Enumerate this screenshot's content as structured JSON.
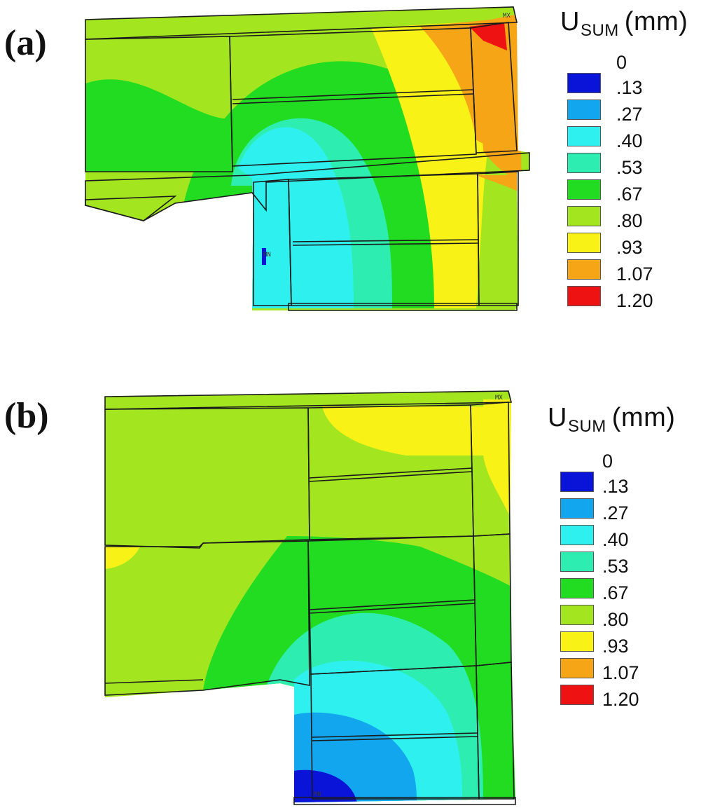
{
  "figure": {
    "panels": [
      {
        "label": "(a)",
        "legend_title_main": "U",
        "legend_title_sub": "SUM",
        "legend_title_unit": "(mm)",
        "max_marker": "MX",
        "min_marker": "MN"
      },
      {
        "label": "(b)",
        "legend_title_main": "U",
        "legend_title_sub": "SUM",
        "legend_title_unit": "(mm)",
        "max_marker": "MX",
        "min_marker": "MN"
      }
    ],
    "legend_levels": [
      "0",
      ".13",
      ".27",
      ".40",
      ".53",
      ".67",
      ".80",
      ".93",
      "1.07",
      "1.20"
    ],
    "legend_colors": [
      "#0a14d8",
      "#12a6ee",
      "#2ef0ee",
      "#2deeb0",
      "#21dc21",
      "#a3e620",
      "#f9f216",
      "#f5a516",
      "#ee1212"
    ]
  }
}
